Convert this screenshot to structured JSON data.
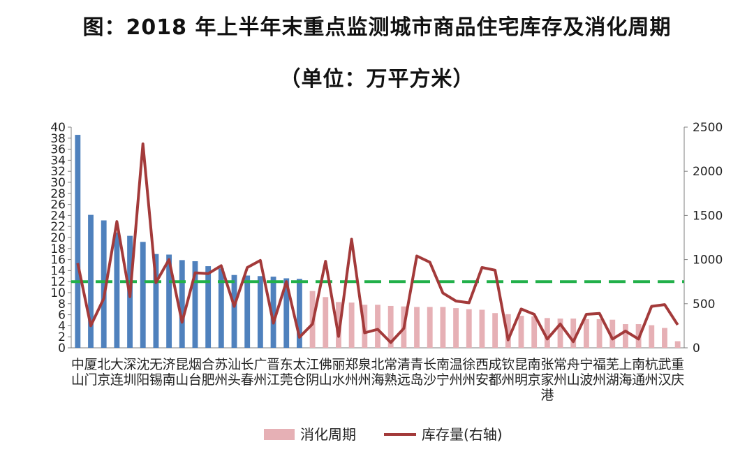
{
  "chart_data": {
    "type": "bar",
    "title": "图：2018 年上半年末重点监测城市商品住宅库存及消化周期",
    "subtitle": "（单位：万平方米）",
    "categories": [
      "中山",
      "厦门",
      "北京",
      "大连",
      "深圳",
      "沈阳",
      "无锡",
      "济南",
      "昆山",
      "烟台",
      "合肥",
      "苏州",
      "汕头",
      "长春",
      "广州",
      "晋江",
      "东莞",
      "太仓",
      "江阴",
      "佛山",
      "丽水",
      "郑州",
      "泉州",
      "北海",
      "常熟",
      "清远",
      "青岛",
      "长沙",
      "南宁",
      "温州",
      "徐州",
      "西安",
      "成都",
      "钦州",
      "昆明",
      "南京",
      "张家港",
      "常州",
      "舟山",
      "宁波",
      "福州",
      "芜湖",
      "上海",
      "南通",
      "杭州",
      "武汉",
      "重庆"
    ],
    "series": [
      {
        "name": "消化周期",
        "axis": "left",
        "values": [
          38.6,
          24.1,
          23.1,
          20.9,
          20.3,
          19.2,
          17.0,
          16.9,
          15.9,
          15.7,
          14.8,
          14.4,
          13.2,
          13.1,
          13.0,
          12.9,
          12.6,
          12.5,
          10.3,
          9.2,
          8.3,
          8.2,
          7.8,
          7.8,
          7.6,
          7.5,
          7.4,
          7.4,
          7.4,
          7.2,
          7.0,
          6.9,
          6.3,
          6.1,
          5.8,
          5.7,
          5.4,
          5.3,
          5.3,
          5.2,
          5.2,
          5.1,
          4.3,
          4.3,
          4.1,
          3.6,
          1.2
        ]
      },
      {
        "name": "库存量(右轴)",
        "axis": "right",
        "values": [
          960,
          250,
          560,
          1430,
          580,
          2310,
          740,
          1000,
          290,
          850,
          840,
          930,
          470,
          910,
          990,
          280,
          750,
          120,
          270,
          980,
          130,
          1230,
          170,
          210,
          60,
          220,
          1040,
          970,
          620,
          530,
          510,
          910,
          880,
          90,
          440,
          380,
          100,
          270,
          70,
          380,
          390,
          100,
          190,
          100,
          470,
          490,
          260
        ]
      }
    ],
    "benchmark": {
      "value": 12,
      "axis": "left"
    },
    "ylim": [
      0,
      40
    ],
    "y_ticks": [
      0,
      2,
      4,
      6,
      8,
      10,
      12,
      14,
      16,
      18,
      20,
      22,
      24,
      26,
      28,
      30,
      32,
      34,
      36,
      38,
      40
    ],
    "y2lim": [
      0,
      2500
    ],
    "y2_ticks": [
      0,
      500,
      1000,
      1500,
      2000,
      2500
    ],
    "highlight_count": 18,
    "colors": {
      "highlight_bar": "#4F81BD",
      "bar": "#E6B0B5",
      "line": "#A33A3A",
      "benchmark": "#22B04A"
    },
    "legend": {
      "position": "bottom"
    }
  }
}
